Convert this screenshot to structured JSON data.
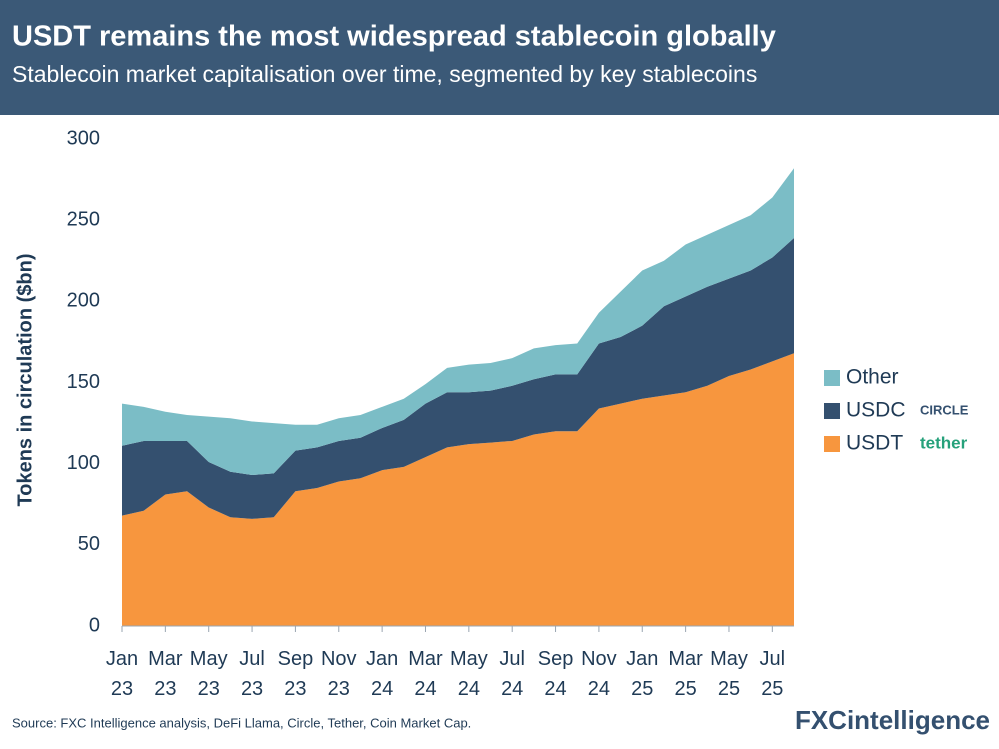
{
  "chart_data": {
    "type": "stacked-area",
    "title": "USDT remains the most widespread stablecoin globally",
    "subtitle": "Stablecoin market capitalisation over time, segmented by key stablecoins",
    "y_label": "Tokens in circulation ($bn)",
    "source": "Source: FXC Intelligence analysis, DeFi Llama, Circle, Tether, Coin Market Cap.",
    "brand": "FXCintelligence",
    "categories": [
      "Jan 23",
      null,
      "Mar 23",
      null,
      "May 23",
      null,
      "Jul 23",
      null,
      "Sep 23",
      null,
      "Nov 23",
      null,
      "Jan 24",
      null,
      "Mar 24",
      null,
      "May 24",
      null,
      "Jul 24",
      null,
      "Sep 24",
      null,
      "Nov 24",
      null,
      "Jan 25",
      null,
      "Mar 25",
      null,
      "May 25",
      null,
      "Jul 25",
      null
    ],
    "series": [
      {
        "name": "USDT",
        "logo": "tether",
        "color": "#f7963e",
        "values": [
          68,
          71,
          81,
          83,
          73,
          67,
          66,
          67,
          83,
          85,
          89,
          91,
          96,
          98,
          104,
          110,
          112,
          113,
          114,
          118,
          120,
          120,
          134,
          137,
          140,
          142,
          144,
          148,
          154,
          158,
          163,
          168
        ]
      },
      {
        "name": "USDC",
        "logo": "CIRCLE",
        "color": "#34506f",
        "values": [
          43,
          43,
          33,
          31,
          28,
          28,
          27,
          27,
          25,
          25,
          25,
          25,
          26,
          29,
          33,
          34,
          32,
          32,
          34,
          34,
          35,
          35,
          40,
          41,
          45,
          55,
          59,
          61,
          60,
          61,
          64,
          71
        ]
      },
      {
        "name": "Other",
        "color": "#7bbdc6",
        "values": [
          26,
          21,
          18,
          16,
          28,
          33,
          33,
          31,
          16,
          14,
          14,
          14,
          13,
          13,
          12,
          15,
          17,
          17,
          17,
          19,
          18,
          19,
          19,
          28,
          34,
          28,
          32,
          32,
          33,
          34,
          37,
          43
        ]
      }
    ],
    "ylim": [
      0,
      300
    ],
    "yticks": [
      0,
      50,
      100,
      150,
      200,
      250,
      300
    ],
    "grid": false
  }
}
